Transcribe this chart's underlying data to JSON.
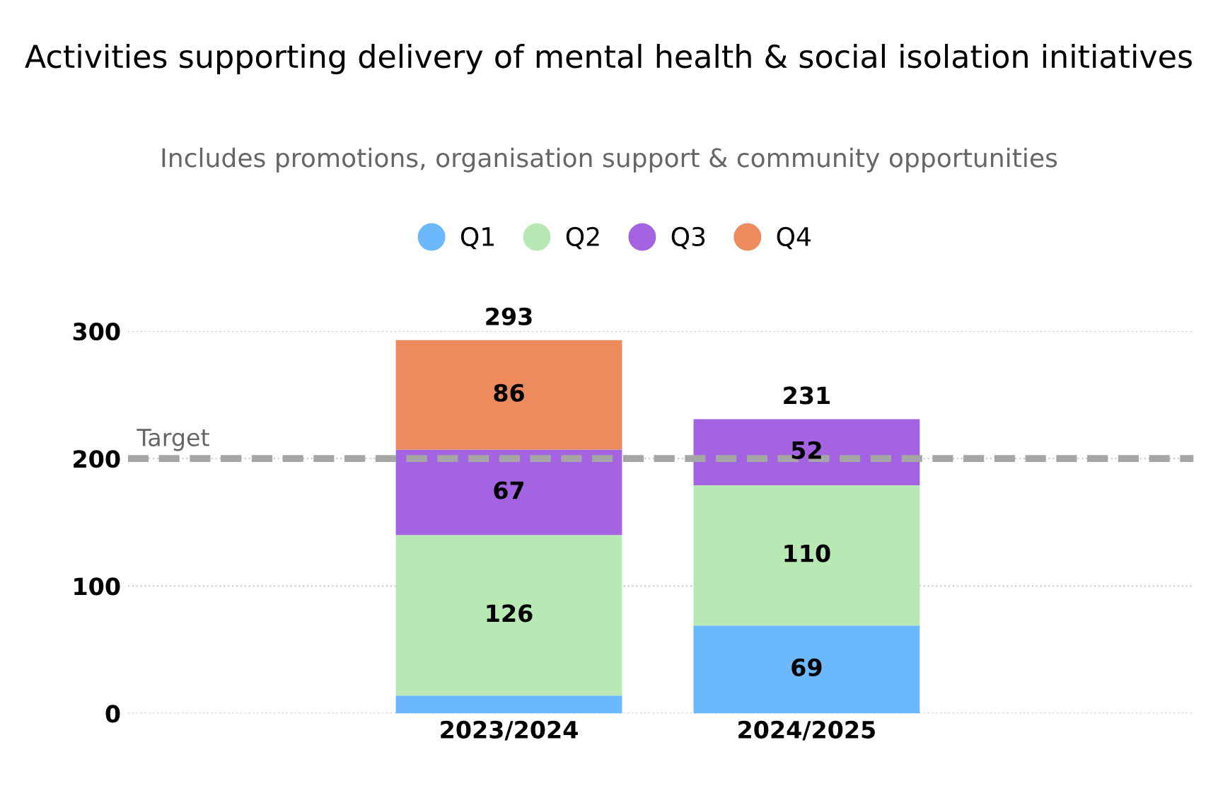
{
  "chart_data": {
    "type": "bar",
    "stacked": true,
    "title": "Activities supporting delivery of mental health & social isolation initiatives",
    "subtitle": "Includes promotions, organisation support & community opportunities",
    "categories": [
      "2023/2024",
      "2024/2025"
    ],
    "series": [
      {
        "name": "Q1",
        "color": "#6cb8fc",
        "values": [
          14,
          69
        ],
        "value_labels": [
          null,
          "69"
        ]
      },
      {
        "name": "Q2",
        "color": "#b8e8b4",
        "values": [
          126,
          110
        ],
        "value_labels": [
          "126",
          "110"
        ]
      },
      {
        "name": "Q3",
        "color": "#a463e0",
        "values": [
          67,
          52
        ],
        "value_labels": [
          "67",
          "52"
        ]
      },
      {
        "name": "Q4",
        "color": "#ec8b5e",
        "values": [
          86,
          null
        ],
        "value_labels": [
          "86",
          null
        ]
      }
    ],
    "totals": [
      "293",
      "231"
    ],
    "ref_lines": [
      {
        "axis": "y",
        "value": 200,
        "label": "Target",
        "color": "#a6a6a6",
        "line_style": "dashed"
      }
    ],
    "ylim": [
      0,
      300
    ],
    "yticks": [
      0,
      100,
      200,
      300
    ],
    "grid": "y",
    "legend": "top"
  }
}
